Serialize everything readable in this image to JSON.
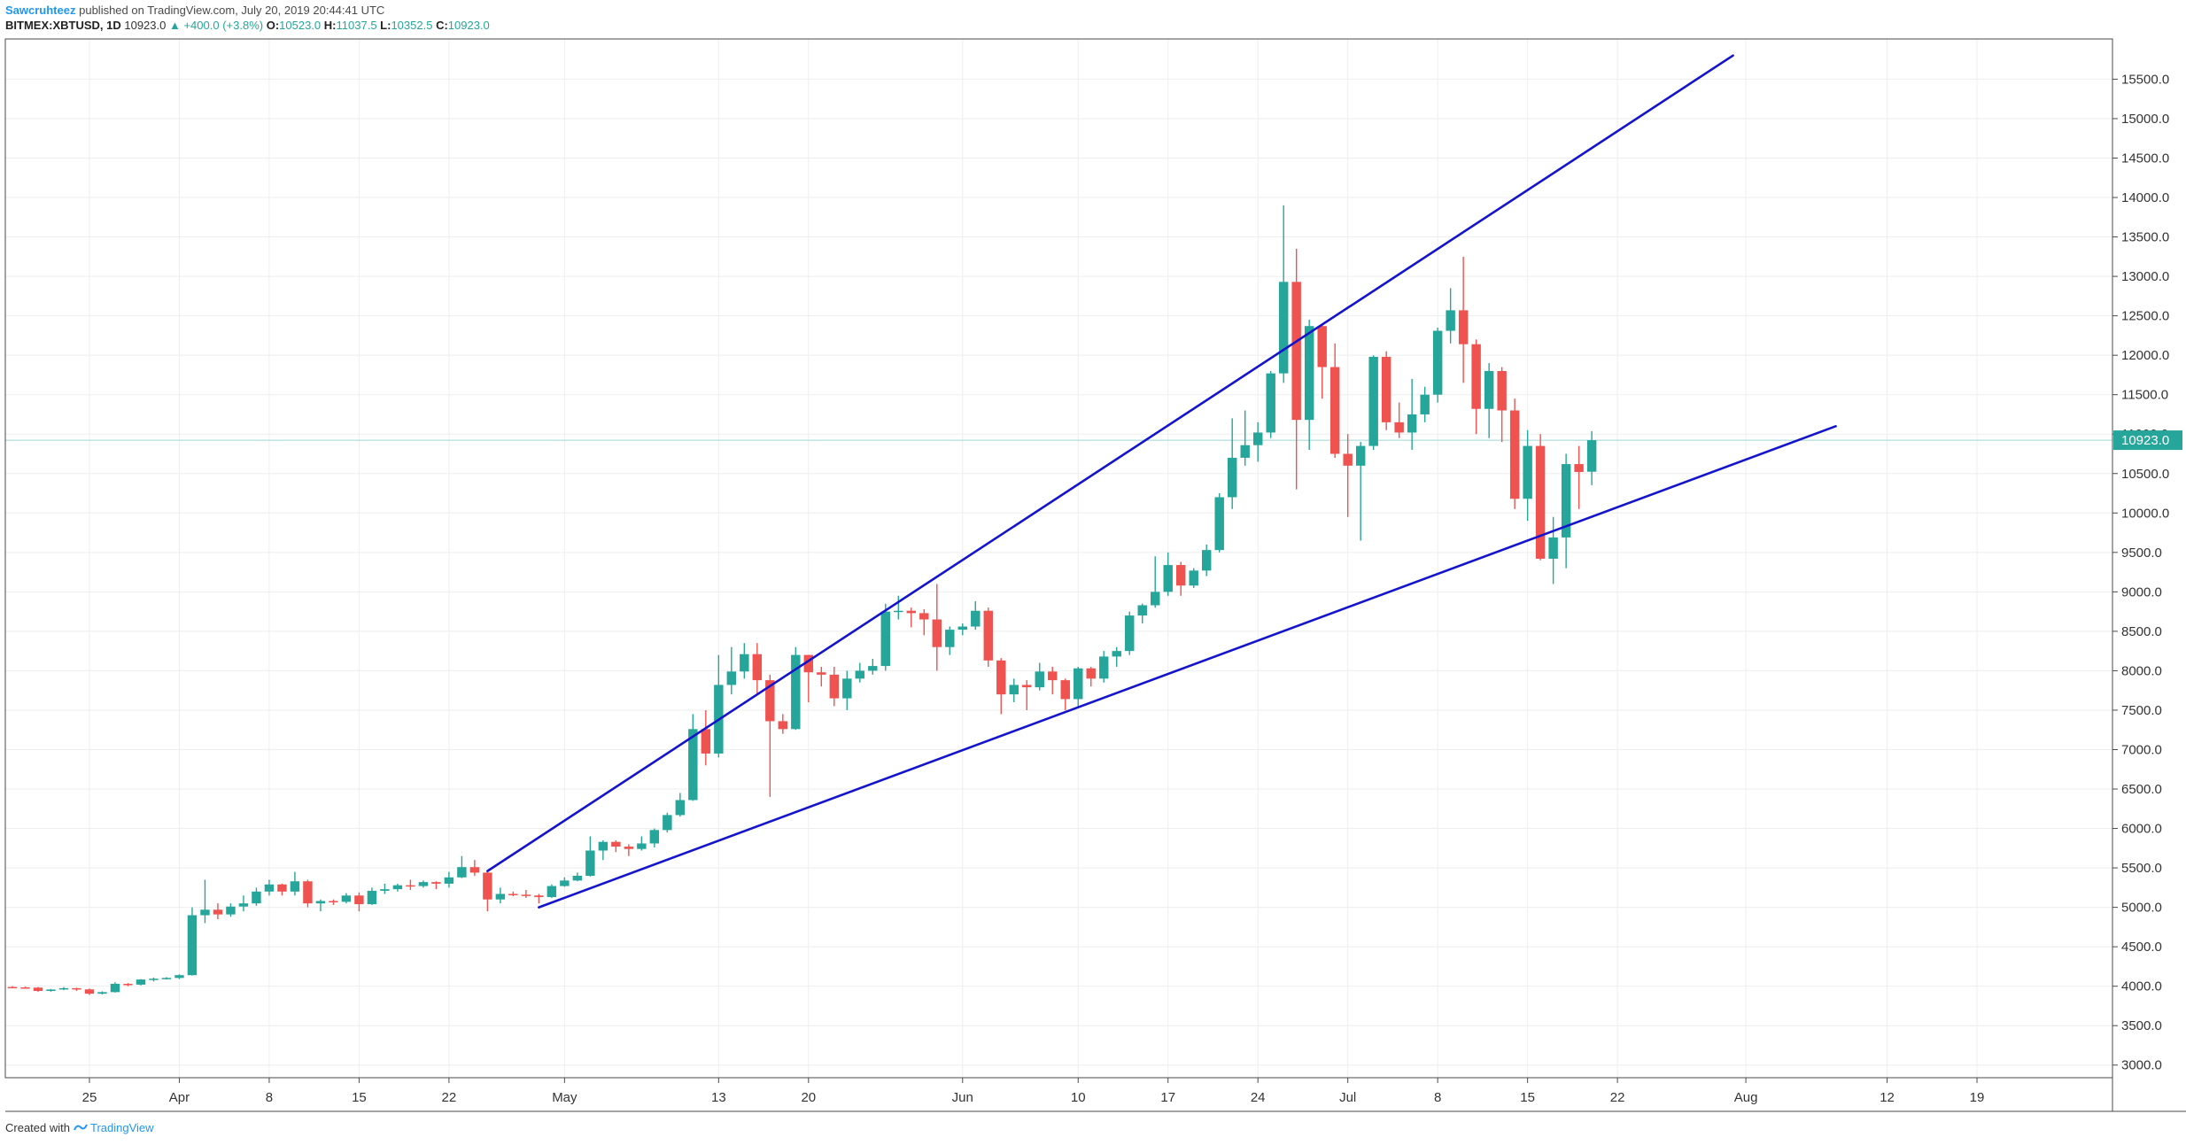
{
  "header": {
    "author": "Sawcruhteez",
    "published": "published on TradingView.com, July 20, 2019 20:44:41 UTC",
    "symbol": "BITMEX:XBTUSD, 1D",
    "last": "10923.0",
    "change": "▲ +400.0 (+3.8%)",
    "o_label": "O:",
    "o_value": "10523.0",
    "h_label": "H:",
    "h_value": "11037.5",
    "l_label": "L:",
    "l_value": "10352.5",
    "c_label": "C:",
    "c_value": "10923.0"
  },
  "footer": {
    "created_with": "Created with",
    "brand": "TradingView"
  },
  "colors": {
    "up": "#26a69a",
    "down": "#ef5350",
    "trendline": "#1414cc",
    "price_tag": "#26a69a",
    "grid": "#eeeeee"
  },
  "chart_data": {
    "type": "candlestick",
    "x_ticks": [
      {
        "label": "25",
        "date": "2019-03-25"
      },
      {
        "label": "Apr",
        "date": "2019-04-01"
      },
      {
        "label": "8",
        "date": "2019-04-08"
      },
      {
        "label": "15",
        "date": "2019-04-15"
      },
      {
        "label": "22",
        "date": "2019-04-22"
      },
      {
        "label": "May",
        "date": "2019-05-01"
      },
      {
        "label": "13",
        "date": "2019-05-13"
      },
      {
        "label": "20",
        "date": "2019-05-20"
      },
      {
        "label": "Jun",
        "date": "2019-06-01"
      },
      {
        "label": "10",
        "date": "2019-06-10"
      },
      {
        "label": "17",
        "date": "2019-06-17"
      },
      {
        "label": "24",
        "date": "2019-06-24"
      },
      {
        "label": "Jul",
        "date": "2019-07-01"
      },
      {
        "label": "8",
        "date": "2019-07-08"
      },
      {
        "label": "15",
        "date": "2019-07-15"
      },
      {
        "label": "22",
        "date": "2019-07-22"
      },
      {
        "label": "Aug",
        "date": "2019-08-01"
      },
      {
        "label": "12",
        "date": "2019-08-12"
      },
      {
        "label": "19",
        "date": "2019-08-19"
      }
    ],
    "y_ticks": [
      "15500.0",
      "15000.0",
      "14500.0",
      "14000.0",
      "13500.0",
      "13000.0",
      "12500.0",
      "12000.0",
      "11500.0",
      "11000.0",
      "10500.0",
      "10000.0",
      "9500.0",
      "9000.0",
      "8500.0",
      "8000.0",
      "7500.0",
      "7000.0",
      "6500.0",
      "6000.0",
      "5500.0",
      "5000.0",
      "4500.0",
      "4000.0",
      "3500.0",
      "3000.0"
    ],
    "ylim": [
      2840,
      16010
    ],
    "xlim": [
      "2019-03-19",
      "2019-08-29"
    ],
    "last_price": 10923.0,
    "last_price_label": "10923.0",
    "candles": [
      {
        "date": "2019-03-19",
        "o": 3990,
        "h": 4000,
        "l": 3975,
        "c": 3985
      },
      {
        "date": "2019-03-20",
        "o": 3985,
        "h": 3995,
        "l": 3970,
        "c": 3982
      },
      {
        "date": "2019-03-21",
        "o": 3982,
        "h": 3990,
        "l": 3930,
        "c": 3940
      },
      {
        "date": "2019-03-22",
        "o": 3940,
        "h": 3965,
        "l": 3930,
        "c": 3958
      },
      {
        "date": "2019-03-23",
        "o": 3958,
        "h": 3990,
        "l": 3950,
        "c": 3975
      },
      {
        "date": "2019-03-24",
        "o": 3975,
        "h": 3980,
        "l": 3940,
        "c": 3960
      },
      {
        "date": "2019-03-25",
        "o": 3960,
        "h": 3970,
        "l": 3890,
        "c": 3905
      },
      {
        "date": "2019-03-26",
        "o": 3905,
        "h": 3935,
        "l": 3895,
        "c": 3925
      },
      {
        "date": "2019-03-27",
        "o": 3925,
        "h": 4050,
        "l": 3920,
        "c": 4030
      },
      {
        "date": "2019-03-28",
        "o": 4030,
        "h": 4040,
        "l": 4000,
        "c": 4020
      },
      {
        "date": "2019-03-29",
        "o": 4020,
        "h": 4090,
        "l": 4010,
        "c": 4085
      },
      {
        "date": "2019-03-30",
        "o": 4085,
        "h": 4110,
        "l": 4060,
        "c": 4095
      },
      {
        "date": "2019-03-31",
        "o": 4095,
        "h": 4115,
        "l": 4085,
        "c": 4105
      },
      {
        "date": "2019-04-01",
        "o": 4105,
        "h": 4150,
        "l": 4090,
        "c": 4140
      },
      {
        "date": "2019-04-02",
        "o": 4140,
        "h": 5000,
        "l": 4135,
        "c": 4900
      },
      {
        "date": "2019-04-03",
        "o": 4900,
        "h": 5350,
        "l": 4800,
        "c": 4970
      },
      {
        "date": "2019-04-04",
        "o": 4970,
        "h": 5050,
        "l": 4850,
        "c": 4910
      },
      {
        "date": "2019-04-05",
        "o": 4910,
        "h": 5050,
        "l": 4880,
        "c": 5010
      },
      {
        "date": "2019-04-06",
        "o": 5010,
        "h": 5150,
        "l": 4950,
        "c": 5050
      },
      {
        "date": "2019-04-07",
        "o": 5050,
        "h": 5250,
        "l": 5020,
        "c": 5200
      },
      {
        "date": "2019-04-08",
        "o": 5200,
        "h": 5350,
        "l": 5150,
        "c": 5290
      },
      {
        "date": "2019-04-09",
        "o": 5290,
        "h": 5300,
        "l": 5150,
        "c": 5200
      },
      {
        "date": "2019-04-10",
        "o": 5200,
        "h": 5450,
        "l": 5150,
        "c": 5330
      },
      {
        "date": "2019-04-11",
        "o": 5330,
        "h": 5350,
        "l": 5000,
        "c": 5050
      },
      {
        "date": "2019-04-12",
        "o": 5050,
        "h": 5100,
        "l": 4950,
        "c": 5080
      },
      {
        "date": "2019-04-13",
        "o": 5080,
        "h": 5100,
        "l": 5030,
        "c": 5070
      },
      {
        "date": "2019-04-14",
        "o": 5070,
        "h": 5180,
        "l": 5050,
        "c": 5150
      },
      {
        "date": "2019-04-15",
        "o": 5150,
        "h": 5190,
        "l": 4950,
        "c": 5040
      },
      {
        "date": "2019-04-16",
        "o": 5040,
        "h": 5250,
        "l": 5030,
        "c": 5210
      },
      {
        "date": "2019-04-17",
        "o": 5210,
        "h": 5300,
        "l": 5170,
        "c": 5230
      },
      {
        "date": "2019-04-18",
        "o": 5230,
        "h": 5300,
        "l": 5200,
        "c": 5280
      },
      {
        "date": "2019-04-19",
        "o": 5280,
        "h": 5350,
        "l": 5220,
        "c": 5270
      },
      {
        "date": "2019-04-20",
        "o": 5270,
        "h": 5340,
        "l": 5250,
        "c": 5320
      },
      {
        "date": "2019-04-21",
        "o": 5320,
        "h": 5330,
        "l": 5230,
        "c": 5300
      },
      {
        "date": "2019-04-22",
        "o": 5300,
        "h": 5450,
        "l": 5250,
        "c": 5380
      },
      {
        "date": "2019-04-23",
        "o": 5380,
        "h": 5650,
        "l": 5370,
        "c": 5510
      },
      {
        "date": "2019-04-24",
        "o": 5510,
        "h": 5600,
        "l": 5400,
        "c": 5440
      },
      {
        "date": "2019-04-25",
        "o": 5440,
        "h": 5450,
        "l": 4950,
        "c": 5100
      },
      {
        "date": "2019-04-26",
        "o": 5100,
        "h": 5250,
        "l": 5050,
        "c": 5170
      },
      {
        "date": "2019-04-27",
        "o": 5170,
        "h": 5200,
        "l": 5140,
        "c": 5160
      },
      {
        "date": "2019-04-28",
        "o": 5160,
        "h": 5220,
        "l": 5120,
        "c": 5150
      },
      {
        "date": "2019-04-29",
        "o": 5150,
        "h": 5170,
        "l": 5050,
        "c": 5130
      },
      {
        "date": "2019-04-30",
        "o": 5130,
        "h": 5290,
        "l": 5120,
        "c": 5270
      },
      {
        "date": "2019-05-01",
        "o": 5270,
        "h": 5380,
        "l": 5260,
        "c": 5340
      },
      {
        "date": "2019-05-02",
        "o": 5340,
        "h": 5440,
        "l": 5330,
        "c": 5400
      },
      {
        "date": "2019-05-03",
        "o": 5400,
        "h": 5900,
        "l": 5390,
        "c": 5720
      },
      {
        "date": "2019-05-04",
        "o": 5720,
        "h": 5850,
        "l": 5600,
        "c": 5830
      },
      {
        "date": "2019-05-05",
        "o": 5830,
        "h": 5850,
        "l": 5700,
        "c": 5770
      },
      {
        "date": "2019-05-06",
        "o": 5770,
        "h": 5800,
        "l": 5650,
        "c": 5740
      },
      {
        "date": "2019-05-07",
        "o": 5740,
        "h": 5900,
        "l": 5720,
        "c": 5810
      },
      {
        "date": "2019-05-08",
        "o": 5810,
        "h": 6000,
        "l": 5760,
        "c": 5980
      },
      {
        "date": "2019-05-09",
        "o": 5980,
        "h": 6200,
        "l": 5950,
        "c": 6170
      },
      {
        "date": "2019-05-10",
        "o": 6170,
        "h": 6450,
        "l": 6150,
        "c": 6360
      },
      {
        "date": "2019-05-11",
        "o": 6360,
        "h": 7450,
        "l": 6350,
        "c": 7260
      },
      {
        "date": "2019-05-12",
        "o": 7260,
        "h": 7500,
        "l": 6800,
        "c": 6950
      },
      {
        "date": "2019-05-13",
        "o": 6950,
        "h": 8200,
        "l": 6900,
        "c": 7820
      },
      {
        "date": "2019-05-14",
        "o": 7820,
        "h": 8300,
        "l": 7700,
        "c": 7990
      },
      {
        "date": "2019-05-15",
        "o": 7990,
        "h": 8350,
        "l": 7900,
        "c": 8210
      },
      {
        "date": "2019-05-16",
        "o": 8210,
        "h": 8350,
        "l": 7700,
        "c": 7880
      },
      {
        "date": "2019-05-17",
        "o": 7880,
        "h": 7950,
        "l": 6400,
        "c": 7360
      },
      {
        "date": "2019-05-18",
        "o": 7360,
        "h": 7450,
        "l": 7200,
        "c": 7260
      },
      {
        "date": "2019-05-19",
        "o": 7260,
        "h": 8300,
        "l": 7250,
        "c": 8200
      },
      {
        "date": "2019-05-20",
        "o": 8200,
        "h": 8200,
        "l": 7600,
        "c": 7980
      },
      {
        "date": "2019-05-21",
        "o": 7980,
        "h": 8050,
        "l": 7800,
        "c": 7950
      },
      {
        "date": "2019-05-22",
        "o": 7950,
        "h": 8050,
        "l": 7550,
        "c": 7650
      },
      {
        "date": "2019-05-23",
        "o": 7650,
        "h": 8000,
        "l": 7500,
        "c": 7900
      },
      {
        "date": "2019-05-24",
        "o": 7900,
        "h": 8100,
        "l": 7850,
        "c": 8000
      },
      {
        "date": "2019-05-25",
        "o": 8000,
        "h": 8150,
        "l": 7950,
        "c": 8060
      },
      {
        "date": "2019-05-26",
        "o": 8060,
        "h": 8850,
        "l": 8000,
        "c": 8750
      },
      {
        "date": "2019-05-27",
        "o": 8750,
        "h": 8950,
        "l": 8650,
        "c": 8760
      },
      {
        "date": "2019-05-28",
        "o": 8760,
        "h": 8800,
        "l": 8550,
        "c": 8730
      },
      {
        "date": "2019-05-29",
        "o": 8730,
        "h": 8780,
        "l": 8450,
        "c": 8650
      },
      {
        "date": "2019-05-30",
        "o": 8650,
        "h": 9100,
        "l": 8000,
        "c": 8300
      },
      {
        "date": "2019-05-31",
        "o": 8300,
        "h": 8560,
        "l": 8200,
        "c": 8520
      },
      {
        "date": "2019-06-01",
        "o": 8520,
        "h": 8600,
        "l": 8450,
        "c": 8560
      },
      {
        "date": "2019-06-02",
        "o": 8560,
        "h": 8880,
        "l": 8520,
        "c": 8760
      },
      {
        "date": "2019-06-03",
        "o": 8760,
        "h": 8800,
        "l": 8050,
        "c": 8130
      },
      {
        "date": "2019-06-04",
        "o": 8130,
        "h": 8160,
        "l": 7450,
        "c": 7700
      },
      {
        "date": "2019-06-05",
        "o": 7700,
        "h": 7900,
        "l": 7600,
        "c": 7820
      },
      {
        "date": "2019-06-06",
        "o": 7820,
        "h": 7880,
        "l": 7500,
        "c": 7790
      },
      {
        "date": "2019-06-07",
        "o": 7790,
        "h": 8100,
        "l": 7750,
        "c": 7990
      },
      {
        "date": "2019-06-08",
        "o": 7990,
        "h": 8050,
        "l": 7700,
        "c": 7880
      },
      {
        "date": "2019-06-09",
        "o": 7880,
        "h": 7900,
        "l": 7500,
        "c": 7640
      },
      {
        "date": "2019-06-10",
        "o": 7640,
        "h": 8050,
        "l": 7550,
        "c": 8030
      },
      {
        "date": "2019-06-11",
        "o": 8030,
        "h": 8050,
        "l": 7800,
        "c": 7900
      },
      {
        "date": "2019-06-12",
        "o": 7900,
        "h": 8250,
        "l": 7850,
        "c": 8180
      },
      {
        "date": "2019-06-13",
        "o": 8180,
        "h": 8300,
        "l": 8050,
        "c": 8250
      },
      {
        "date": "2019-06-14",
        "o": 8250,
        "h": 8750,
        "l": 8200,
        "c": 8700
      },
      {
        "date": "2019-06-15",
        "o": 8700,
        "h": 8850,
        "l": 8600,
        "c": 8830
      },
      {
        "date": "2019-06-16",
        "o": 8830,
        "h": 9450,
        "l": 8800,
        "c": 9000
      },
      {
        "date": "2019-06-17",
        "o": 9000,
        "h": 9500,
        "l": 8950,
        "c": 9340
      },
      {
        "date": "2019-06-18",
        "o": 9340,
        "h": 9380,
        "l": 8950,
        "c": 9080
      },
      {
        "date": "2019-06-19",
        "o": 9080,
        "h": 9300,
        "l": 9050,
        "c": 9270
      },
      {
        "date": "2019-06-20",
        "o": 9270,
        "h": 9600,
        "l": 9200,
        "c": 9530
      },
      {
        "date": "2019-06-21",
        "o": 9530,
        "h": 10250,
        "l": 9500,
        "c": 10200
      },
      {
        "date": "2019-06-22",
        "o": 10200,
        "h": 11200,
        "l": 10050,
        "c": 10700
      },
      {
        "date": "2019-06-23",
        "o": 10700,
        "h": 11300,
        "l": 10600,
        "c": 10860
      },
      {
        "date": "2019-06-24",
        "o": 10860,
        "h": 11150,
        "l": 10650,
        "c": 11020
      },
      {
        "date": "2019-06-25",
        "o": 11020,
        "h": 11800,
        "l": 10950,
        "c": 11770
      },
      {
        "date": "2019-06-26",
        "o": 11770,
        "h": 13900,
        "l": 11650,
        "c": 12930
      },
      {
        "date": "2019-06-27",
        "o": 12930,
        "h": 13350,
        "l": 10300,
        "c": 11180
      },
      {
        "date": "2019-06-28",
        "o": 11180,
        "h": 12450,
        "l": 10800,
        "c": 12370
      },
      {
        "date": "2019-06-29",
        "o": 12370,
        "h": 12400,
        "l": 11450,
        "c": 11850
      },
      {
        "date": "2019-06-30",
        "o": 11850,
        "h": 12150,
        "l": 10700,
        "c": 10750
      },
      {
        "date": "2019-07-01",
        "o": 10750,
        "h": 11000,
        "l": 9950,
        "c": 10600
      },
      {
        "date": "2019-07-02",
        "o": 10600,
        "h": 10900,
        "l": 9650,
        "c": 10850
      },
      {
        "date": "2019-07-03",
        "o": 10850,
        "h": 12000,
        "l": 10800,
        "c": 11980
      },
      {
        "date": "2019-07-04",
        "o": 11980,
        "h": 12050,
        "l": 11050,
        "c": 11150
      },
      {
        "date": "2019-07-05",
        "o": 11150,
        "h": 11400,
        "l": 10950,
        "c": 11020
      },
      {
        "date": "2019-07-06",
        "o": 11020,
        "h": 11700,
        "l": 10800,
        "c": 11250
      },
      {
        "date": "2019-07-07",
        "o": 11250,
        "h": 11600,
        "l": 11150,
        "c": 11500
      },
      {
        "date": "2019-07-08",
        "o": 11500,
        "h": 12350,
        "l": 11400,
        "c": 12310
      },
      {
        "date": "2019-07-09",
        "o": 12310,
        "h": 12850,
        "l": 12150,
        "c": 12570
      },
      {
        "date": "2019-07-10",
        "o": 12570,
        "h": 13250,
        "l": 11650,
        "c": 12140
      },
      {
        "date": "2019-07-11",
        "o": 12140,
        "h": 12200,
        "l": 11000,
        "c": 11320
      },
      {
        "date": "2019-07-12",
        "o": 11320,
        "h": 11900,
        "l": 10950,
        "c": 11800
      },
      {
        "date": "2019-07-13",
        "o": 11800,
        "h": 11850,
        "l": 10900,
        "c": 11300
      },
      {
        "date": "2019-07-14",
        "o": 11300,
        "h": 11450,
        "l": 10050,
        "c": 10180
      },
      {
        "date": "2019-07-15",
        "o": 10180,
        "h": 11050,
        "l": 9900,
        "c": 10850
      },
      {
        "date": "2019-07-16",
        "o": 10850,
        "h": 11000,
        "l": 9400,
        "c": 9420
      },
      {
        "date": "2019-07-17",
        "o": 9420,
        "h": 9950,
        "l": 9100,
        "c": 9690
      },
      {
        "date": "2019-07-18",
        "o": 9690,
        "h": 10750,
        "l": 9300,
        "c": 10620
      },
      {
        "date": "2019-07-19",
        "o": 10620,
        "h": 10850,
        "l": 10050,
        "c": 10520
      },
      {
        "date": "2019-07-20",
        "o": 10523,
        "h": 11037.5,
        "l": 10352.5,
        "c": 10923
      }
    ],
    "trendlines": [
      {
        "name": "upper",
        "from": {
          "date": "2019-04-25",
          "price": 5460
        },
        "to": {
          "date": "2019-07-31",
          "price": 15800
        }
      },
      {
        "name": "lower",
        "from": {
          "date": "2019-04-29",
          "price": 5000
        },
        "to": {
          "date": "2019-08-08",
          "price": 11100
        }
      }
    ]
  }
}
